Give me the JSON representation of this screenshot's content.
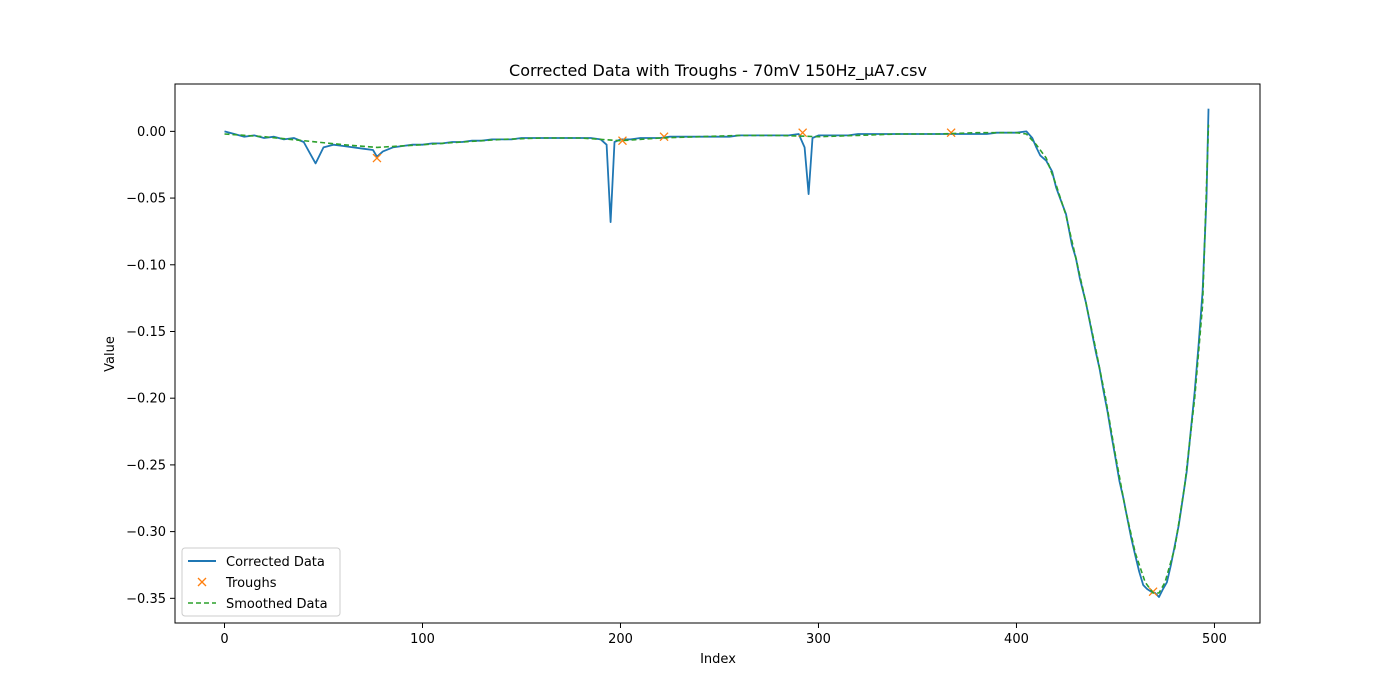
{
  "chart_data": {
    "type": "line",
    "title": "Corrected Data with Troughs - 70mV 150Hz_µA7.csv",
    "xlabel": "Index",
    "ylabel": "Value",
    "xlim": [
      -25,
      523
    ],
    "ylim": [
      -0.3685,
      0.0355
    ],
    "xticks": [
      0,
      100,
      200,
      300,
      400,
      500
    ],
    "xtick_labels": [
      "0",
      "100",
      "200",
      "300",
      "400",
      "500"
    ],
    "yticks": [
      0.0,
      -0.05,
      -0.1,
      -0.15,
      -0.2,
      -0.25,
      -0.3,
      -0.35
    ],
    "ytick_labels": [
      "0.00",
      "−0.05",
      "−0.10",
      "−0.15",
      "−0.20",
      "−0.25",
      "−0.30",
      "−0.35"
    ],
    "grid": false,
    "legend_position": "lower-left",
    "series": [
      {
        "name": "Corrected Data",
        "style": "solid",
        "color": "#1f77b4",
        "points": [
          [
            0,
            0.0
          ],
          [
            5,
            -0.002
          ],
          [
            10,
            -0.004
          ],
          [
            15,
            -0.003
          ],
          [
            20,
            -0.005
          ],
          [
            25,
            -0.004
          ],
          [
            30,
            -0.006
          ],
          [
            35,
            -0.005
          ],
          [
            40,
            -0.008
          ],
          [
            43,
            -0.016
          ],
          [
            46,
            -0.024
          ],
          [
            50,
            -0.012
          ],
          [
            55,
            -0.01
          ],
          [
            60,
            -0.011
          ],
          [
            65,
            -0.012
          ],
          [
            70,
            -0.013
          ],
          [
            75,
            -0.014
          ],
          [
            77,
            -0.019
          ],
          [
            80,
            -0.015
          ],
          [
            85,
            -0.012
          ],
          [
            90,
            -0.011
          ],
          [
            95,
            -0.01
          ],
          [
            100,
            -0.01
          ],
          [
            105,
            -0.009
          ],
          [
            110,
            -0.009
          ],
          [
            115,
            -0.008
          ],
          [
            120,
            -0.008
          ],
          [
            125,
            -0.007
          ],
          [
            130,
            -0.007
          ],
          [
            135,
            -0.006
          ],
          [
            140,
            -0.006
          ],
          [
            145,
            -0.006
          ],
          [
            150,
            -0.005
          ],
          [
            155,
            -0.005
          ],
          [
            160,
            -0.005
          ],
          [
            165,
            -0.005
          ],
          [
            170,
            -0.005
          ],
          [
            175,
            -0.005
          ],
          [
            180,
            -0.005
          ],
          [
            185,
            -0.005
          ],
          [
            190,
            -0.006
          ],
          [
            193,
            -0.01
          ],
          [
            195,
            -0.068
          ],
          [
            197,
            -0.008
          ],
          [
            200,
            -0.006
          ],
          [
            205,
            -0.006
          ],
          [
            210,
            -0.005
          ],
          [
            215,
            -0.005
          ],
          [
            220,
            -0.005
          ],
          [
            225,
            -0.004
          ],
          [
            230,
            -0.004
          ],
          [
            235,
            -0.004
          ],
          [
            240,
            -0.004
          ],
          [
            245,
            -0.004
          ],
          [
            250,
            -0.004
          ],
          [
            255,
            -0.004
          ],
          [
            260,
            -0.003
          ],
          [
            265,
            -0.003
          ],
          [
            270,
            -0.003
          ],
          [
            275,
            -0.003
          ],
          [
            280,
            -0.003
          ],
          [
            285,
            -0.003
          ],
          [
            290,
            -0.002
          ],
          [
            293,
            -0.012
          ],
          [
            295,
            -0.047
          ],
          [
            297,
            -0.005
          ],
          [
            300,
            -0.003
          ],
          [
            305,
            -0.003
          ],
          [
            310,
            -0.003
          ],
          [
            315,
            -0.003
          ],
          [
            320,
            -0.002
          ],
          [
            325,
            -0.002
          ],
          [
            330,
            -0.002
          ],
          [
            335,
            -0.002
          ],
          [
            340,
            -0.002
          ],
          [
            345,
            -0.002
          ],
          [
            350,
            -0.002
          ],
          [
            355,
            -0.002
          ],
          [
            360,
            -0.002
          ],
          [
            365,
            -0.002
          ],
          [
            370,
            -0.002
          ],
          [
            375,
            -0.002
          ],
          [
            380,
            -0.002
          ],
          [
            385,
            -0.002
          ],
          [
            390,
            -0.001
          ],
          [
            395,
            -0.001
          ],
          [
            400,
            -0.001
          ],
          [
            405,
            0.0
          ],
          [
            408,
            -0.005
          ],
          [
            410,
            -0.012
          ],
          [
            412,
            -0.018
          ],
          [
            415,
            -0.022
          ],
          [
            418,
            -0.03
          ],
          [
            420,
            -0.042
          ],
          [
            422,
            -0.05
          ],
          [
            425,
            -0.062
          ],
          [
            428,
            -0.085
          ],
          [
            430,
            -0.095
          ],
          [
            432,
            -0.11
          ],
          [
            435,
            -0.128
          ],
          [
            438,
            -0.15
          ],
          [
            440,
            -0.165
          ],
          [
            442,
            -0.178
          ],
          [
            444,
            -0.195
          ],
          [
            446,
            -0.21
          ],
          [
            448,
            -0.228
          ],
          [
            450,
            -0.245
          ],
          [
            452,
            -0.262
          ],
          [
            454,
            -0.275
          ],
          [
            456,
            -0.29
          ],
          [
            458,
            -0.305
          ],
          [
            460,
            -0.318
          ],
          [
            462,
            -0.33
          ],
          [
            464,
            -0.34
          ],
          [
            466,
            -0.343
          ],
          [
            468,
            -0.345
          ],
          [
            470,
            -0.346
          ],
          [
            472,
            -0.349
          ],
          [
            474,
            -0.343
          ],
          [
            476,
            -0.338
          ],
          [
            478,
            -0.325
          ],
          [
            480,
            -0.31
          ],
          [
            482,
            -0.295
          ],
          [
            484,
            -0.275
          ],
          [
            486,
            -0.255
          ],
          [
            488,
            -0.225
          ],
          [
            490,
            -0.195
          ],
          [
            492,
            -0.16
          ],
          [
            494,
            -0.12
          ],
          [
            496,
            -0.05
          ],
          [
            497,
            0.017
          ]
        ]
      },
      {
        "name": "Troughs",
        "style": "marker-x",
        "color": "#ff7f0e",
        "points": [
          [
            77,
            -0.02
          ],
          [
            201,
            -0.007
          ],
          [
            222,
            -0.004
          ],
          [
            292,
            -0.001
          ],
          [
            367,
            -0.001
          ],
          [
            469,
            -0.345
          ]
        ]
      },
      {
        "name": "Smoothed Data",
        "style": "dashed",
        "color": "#2ca02c",
        "points": [
          [
            0,
            -0.002
          ],
          [
            20,
            -0.004
          ],
          [
            40,
            -0.007
          ],
          [
            60,
            -0.01
          ],
          [
            77,
            -0.012
          ],
          [
            100,
            -0.01
          ],
          [
            120,
            -0.008
          ],
          [
            140,
            -0.006
          ],
          [
            160,
            -0.005
          ],
          [
            180,
            -0.005
          ],
          [
            200,
            -0.007
          ],
          [
            220,
            -0.005
          ],
          [
            240,
            -0.004
          ],
          [
            260,
            -0.003
          ],
          [
            280,
            -0.003
          ],
          [
            300,
            -0.004
          ],
          [
            320,
            -0.003
          ],
          [
            340,
            -0.002
          ],
          [
            360,
            -0.002
          ],
          [
            380,
            -0.001
          ],
          [
            400,
            -0.001
          ],
          [
            405,
            -0.002
          ],
          [
            410,
            -0.01
          ],
          [
            415,
            -0.02
          ],
          [
            420,
            -0.04
          ],
          [
            425,
            -0.063
          ],
          [
            430,
            -0.095
          ],
          [
            435,
            -0.128
          ],
          [
            440,
            -0.163
          ],
          [
            445,
            -0.2
          ],
          [
            450,
            -0.243
          ],
          [
            455,
            -0.283
          ],
          [
            460,
            -0.316
          ],
          [
            465,
            -0.338
          ],
          [
            469,
            -0.346
          ],
          [
            472,
            -0.346
          ],
          [
            475,
            -0.338
          ],
          [
            480,
            -0.312
          ],
          [
            485,
            -0.265
          ],
          [
            490,
            -0.2
          ],
          [
            494,
            -0.13
          ],
          [
            497,
            0.005
          ]
        ]
      }
    ]
  }
}
